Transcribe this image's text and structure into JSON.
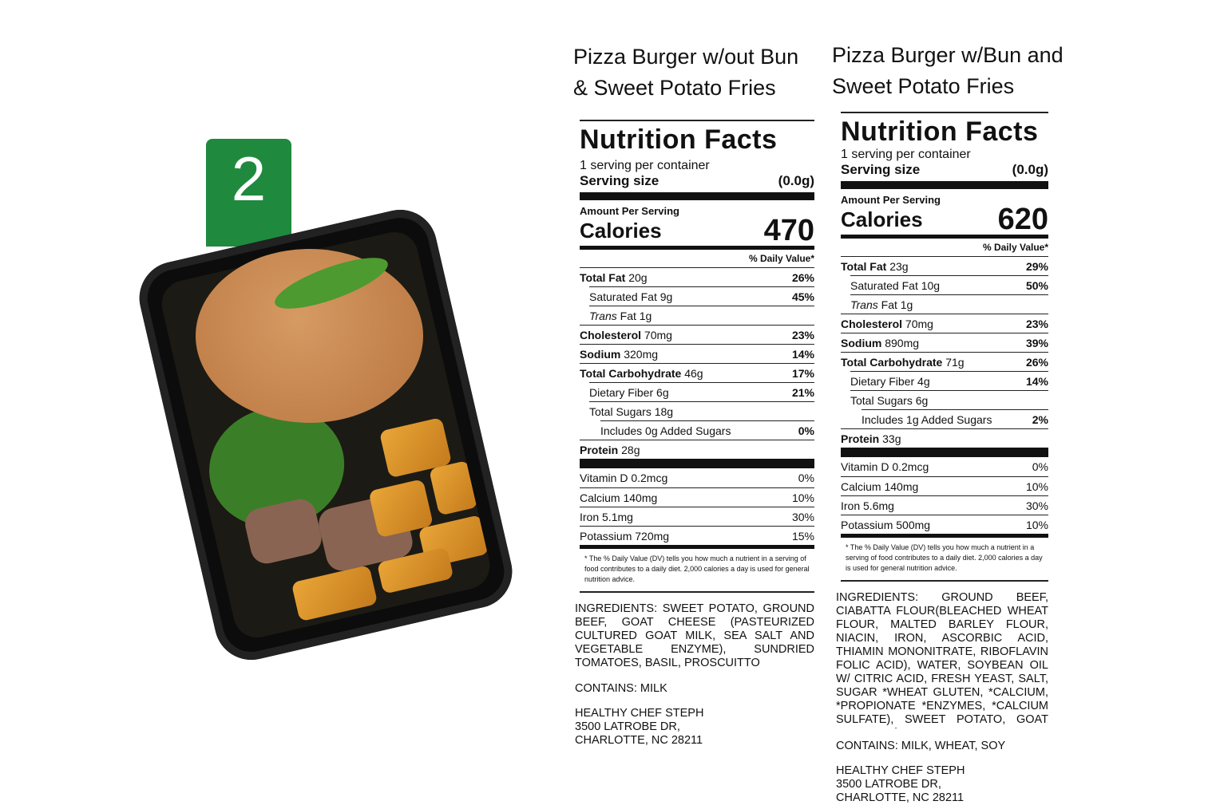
{
  "badge": {
    "number": "2",
    "color": "#1f8a3e"
  },
  "labels": [
    {
      "title_line1": "Pizza Burger w/out Bun",
      "title_line2": "& Sweet Potato Fries",
      "heading": "Nutrition Facts",
      "servings": "1 serving per container",
      "serving_size_label": "Serving size",
      "serving_size": "(0.0g)",
      "amount_per_serving": "Amount Per Serving",
      "calories_label": "Calories",
      "calories": "470",
      "dv_header": "% Daily Value*",
      "nutrients": [
        {
          "name": "Total Fat",
          "amount": "20g",
          "dv": "26%",
          "bold": true,
          "indent": 0
        },
        {
          "name": "Saturated Fat",
          "amount": "9g",
          "dv": "45%",
          "bold": false,
          "indent": 1
        },
        {
          "name": "Trans",
          "amount": "Fat 1g",
          "dv": "",
          "bold": false,
          "indent": 1,
          "italic": true
        },
        {
          "name": "Cholesterol",
          "amount": "70mg",
          "dv": "23%",
          "bold": true,
          "indent": 0
        },
        {
          "name": "Sodium",
          "amount": "320mg",
          "dv": "14%",
          "bold": true,
          "indent": 0
        },
        {
          "name": "Total Carbohydrate",
          "amount": "46g",
          "dv": "17%",
          "bold": true,
          "indent": 0
        },
        {
          "name": "Dietary Fiber",
          "amount": "6g",
          "dv": "21%",
          "bold": false,
          "indent": 1
        },
        {
          "name": "Total Sugars",
          "amount": "18g",
          "dv": "",
          "bold": false,
          "indent": 1
        },
        {
          "name": "Includes 0g Added Sugars",
          "amount": "",
          "dv": "0%",
          "bold": false,
          "indent": 2
        },
        {
          "name": "Protein",
          "amount": "28g",
          "dv": "",
          "bold": true,
          "indent": 0
        }
      ],
      "vitamins": [
        {
          "name": "Vitamin D 0.2mcg",
          "dv": "0%"
        },
        {
          "name": "Calcium 140mg",
          "dv": "10%"
        },
        {
          "name": "Iron 5.1mg",
          "dv": "30%"
        },
        {
          "name": "Potassium 720mg",
          "dv": "15%"
        }
      ],
      "footnote": "* The % Daily Value (DV) tells you how much a nutrient in a serving of food contributes to a daily diet. 2,000 calories a day is used for general nutrition advice.",
      "ingredients": "INGREDIENTS: SWEET POTATO, GROUND BEEF, GOAT CHEESE (PASTEURIZED CULTURED GOAT MILK, SEA SALT AND VEGETABLE ENZYME), SUNDRIED TOMATOES, BASIL, PROSCUITTO",
      "contains": "CONTAINS: MILK",
      "address": [
        "HEALTHY CHEF STEPH",
        "3500 LATROBE DR,",
        "CHARLOTTE, NC 28211"
      ]
    },
    {
      "title_line1": "Pizza Burger w/Bun and",
      "title_line2": "Sweet Potato Fries",
      "heading": "Nutrition Facts",
      "servings": "1 serving per container",
      "serving_size_label": "Serving size",
      "serving_size": "(0.0g)",
      "amount_per_serving": "Amount Per Serving",
      "calories_label": "Calories",
      "calories": "620",
      "dv_header": "% Daily Value*",
      "nutrients": [
        {
          "name": "Total Fat",
          "amount": "23g",
          "dv": "29%",
          "bold": true,
          "indent": 0
        },
        {
          "name": "Saturated Fat",
          "amount": "10g",
          "dv": "50%",
          "bold": false,
          "indent": 1
        },
        {
          "name": "Trans",
          "amount": "Fat 1g",
          "dv": "",
          "bold": false,
          "indent": 1,
          "italic": true
        },
        {
          "name": "Cholesterol",
          "amount": "70mg",
          "dv": "23%",
          "bold": true,
          "indent": 0
        },
        {
          "name": "Sodium",
          "amount": "890mg",
          "dv": "39%",
          "bold": true,
          "indent": 0
        },
        {
          "name": "Total Carbohydrate",
          "amount": "71g",
          "dv": "26%",
          "bold": true,
          "indent": 0
        },
        {
          "name": "Dietary Fiber",
          "amount": "4g",
          "dv": "14%",
          "bold": false,
          "indent": 1
        },
        {
          "name": "Total Sugars",
          "amount": "6g",
          "dv": "",
          "bold": false,
          "indent": 1
        },
        {
          "name": "Includes 1g Added Sugars",
          "amount": "",
          "dv": "2%",
          "bold": false,
          "indent": 2
        },
        {
          "name": "Protein",
          "amount": "33g",
          "dv": "",
          "bold": true,
          "indent": 0
        }
      ],
      "vitamins": [
        {
          "name": "Vitamin D 0.2mcg",
          "dv": "0%"
        },
        {
          "name": "Calcium 140mg",
          "dv": "10%"
        },
        {
          "name": "Iron 5.6mg",
          "dv": "30%"
        },
        {
          "name": "Potassium 500mg",
          "dv": "10%"
        }
      ],
      "footnote": "* The % Daily Value (DV) tells you how much a nutrient in a serving of food contributes to a daily diet. 2,000 calories a day is used for general nutrition advice.",
      "ingredients": "INGREDIENTS: GROUND BEEF, CIABATTA FLOUR(BLEACHED WHEAT FLOUR, MALTED BARLEY FLOUR, NIACIN, IRON, ASCORBIC ACID, THIAMIN MONONITRATE, RIBOFLAVIN FOLIC ACID), WATER, SOYBEAN OIL W/ CITRIC ACID, FRESH YEAST, SALT, SUGAR *WHEAT GLUTEN, *CALCIUM, *PROPIONATE *ENZYMES, *CALCIUM SULFATE), SWEET POTATO, GOAT CHEESE (PASTEURIZED CULTURED GOAT MILK, SEA SALT AND VEGETABLE ENZYME), BASIL, PROSCUITTO",
      "contains": "CONTAINS: MILK, WHEAT, SOY",
      "address": [
        "HEALTHY CHEF STEPH",
        "3500 LATROBE DR,",
        "CHARLOTTE, NC 28211"
      ]
    }
  ]
}
